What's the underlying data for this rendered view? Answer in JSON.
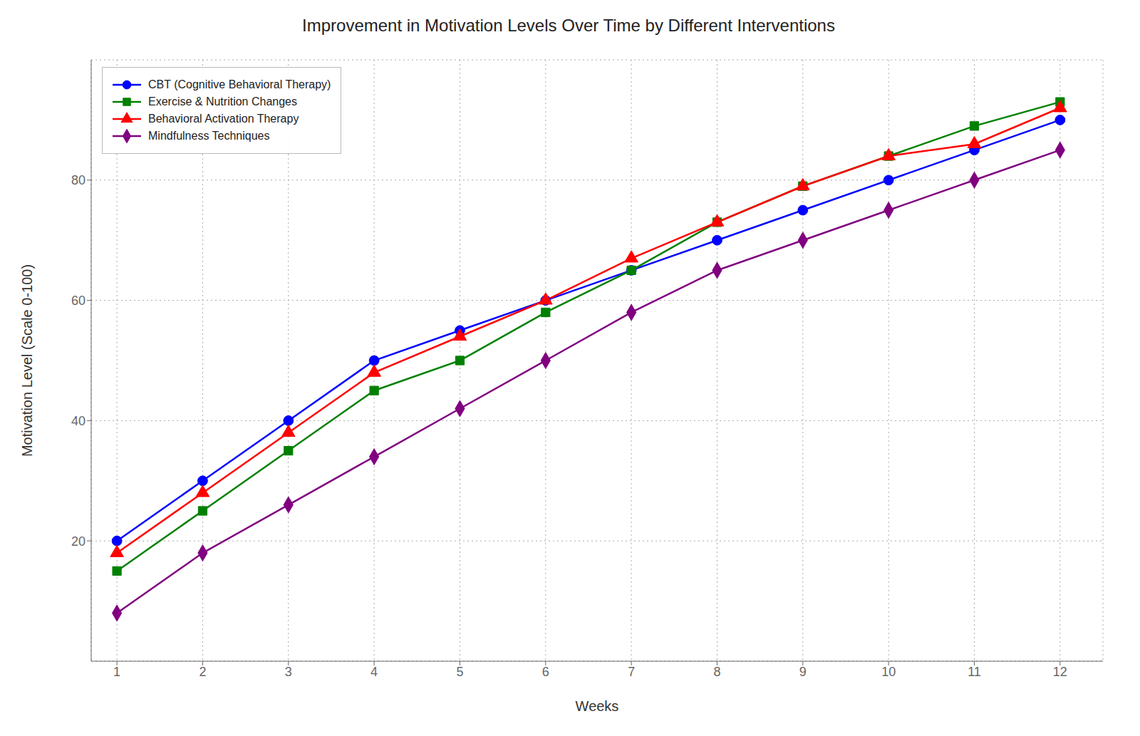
{
  "chart_data": {
    "type": "line",
    "title": "Improvement in Motivation Levels Over Time by Different Interventions",
    "xlabel": "Weeks",
    "ylabel": "Motivation Level (Scale 0-100)",
    "x": [
      1,
      2,
      3,
      4,
      5,
      6,
      7,
      8,
      9,
      10,
      11,
      12
    ],
    "series": [
      {
        "name": "CBT (Cognitive Behavioral Therapy)",
        "color": "blue",
        "marker": "circle",
        "values": [
          20,
          30,
          40,
          50,
          55,
          60,
          65,
          70,
          75,
          80,
          85,
          90
        ]
      },
      {
        "name": "Exercise & Nutrition Changes",
        "color": "green",
        "marker": "square",
        "values": [
          15,
          25,
          35,
          45,
          50,
          58,
          65,
          73,
          79,
          84,
          89,
          93
        ]
      },
      {
        "name": "Behavioral Activation Therapy",
        "color": "red",
        "marker": "triangle",
        "values": [
          18,
          28,
          38,
          48,
          54,
          60,
          67,
          73,
          79,
          84,
          86,
          92
        ]
      },
      {
        "name": "Mindfulness Techniques",
        "color": "purple",
        "marker": "diamond",
        "values": [
          8,
          18,
          26,
          34,
          42,
          50,
          58,
          65,
          70,
          75,
          80,
          85
        ]
      }
    ],
    "xlim": [
      0.7,
      12.5
    ],
    "ylim": [
      0,
      100
    ],
    "xticks": [
      1,
      2,
      3,
      4,
      5,
      6,
      7,
      8,
      9,
      10,
      11,
      12
    ],
    "yticks": [
      20,
      40,
      60,
      80
    ],
    "grid": true,
    "legend": "upper left"
  }
}
